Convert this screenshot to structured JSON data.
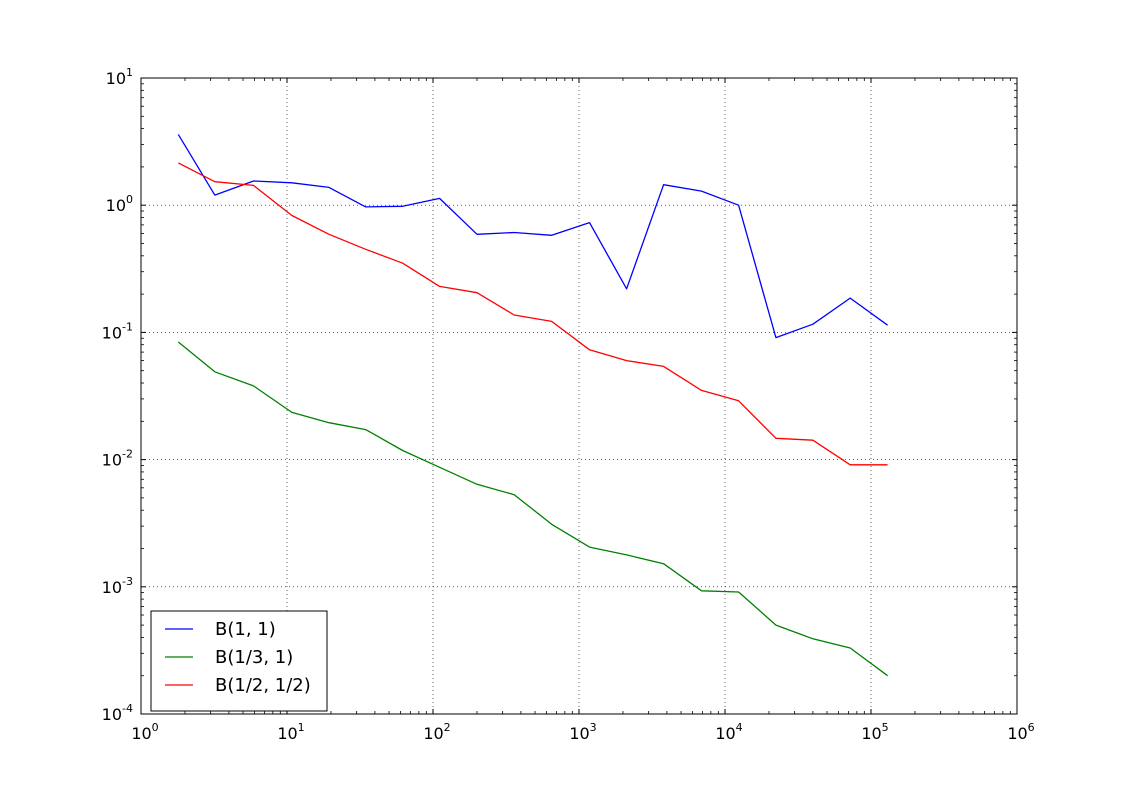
{
  "chart_data": {
    "type": "line",
    "title": "",
    "xlabel": "",
    "ylabel": "",
    "xscale": "log",
    "yscale": "log",
    "xlim": [
      1,
      1000000
    ],
    "ylim": [
      0.0001,
      10
    ],
    "grid": true,
    "legend_position": "lower-left",
    "x_ticks": [
      {
        "base": "10",
        "exp": "0",
        "value": 1
      },
      {
        "base": "10",
        "exp": "1",
        "value": 10
      },
      {
        "base": "10",
        "exp": "2",
        "value": 100
      },
      {
        "base": "10",
        "exp": "3",
        "value": 1000
      },
      {
        "base": "10",
        "exp": "4",
        "value": 10000
      },
      {
        "base": "10",
        "exp": "5",
        "value": 100000
      },
      {
        "base": "10",
        "exp": "6",
        "value": 1000000
      }
    ],
    "y_ticks": [
      {
        "base": "10",
        "exp": "1",
        "value": 10
      },
      {
        "base": "10",
        "exp": "0",
        "value": 1
      },
      {
        "base": "10",
        "exp": "-1",
        "value": 0.1
      },
      {
        "base": "10",
        "exp": "-2",
        "value": 0.01
      },
      {
        "base": "10",
        "exp": "-3",
        "value": 0.001
      },
      {
        "base": "10",
        "exp": "-4",
        "value": 0.0001
      }
    ],
    "x": [
      1.8,
      3.2,
      5.9,
      10.8,
      19.4,
      34.6,
      62,
      111,
      200,
      360,
      650,
      1180,
      2120,
      3800,
      6900,
      12400,
      22300,
      40000,
      72000,
      130000
    ],
    "series": [
      {
        "name": "B(1, 1)",
        "color": "#0000ff",
        "values": [
          3.6,
          1.2,
          1.55,
          1.5,
          1.38,
          0.97,
          0.98,
          1.13,
          0.59,
          0.61,
          0.58,
          0.73,
          0.22,
          1.45,
          1.29,
          1.0,
          0.091,
          0.116,
          0.186,
          0.114
        ]
      },
      {
        "name": "B(1/3, 1)",
        "color": "#008000",
        "values": [
          0.084,
          0.049,
          0.038,
          0.0235,
          0.0195,
          0.0172,
          0.0118,
          0.0087,
          0.0064,
          0.0053,
          0.0031,
          0.00205,
          0.00178,
          0.00152,
          0.00093,
          0.00091,
          0.0005,
          0.00039,
          0.00033,
          0.0002
        ]
      },
      {
        "name": "B(1/2, 1/2)",
        "color": "#ff0000",
        "values": [
          2.15,
          1.53,
          1.43,
          0.83,
          0.59,
          0.45,
          0.35,
          0.23,
          0.205,
          0.137,
          0.122,
          0.073,
          0.06,
          0.054,
          0.035,
          0.029,
          0.0147,
          0.0142,
          0.0091,
          0.0091
        ]
      }
    ]
  }
}
